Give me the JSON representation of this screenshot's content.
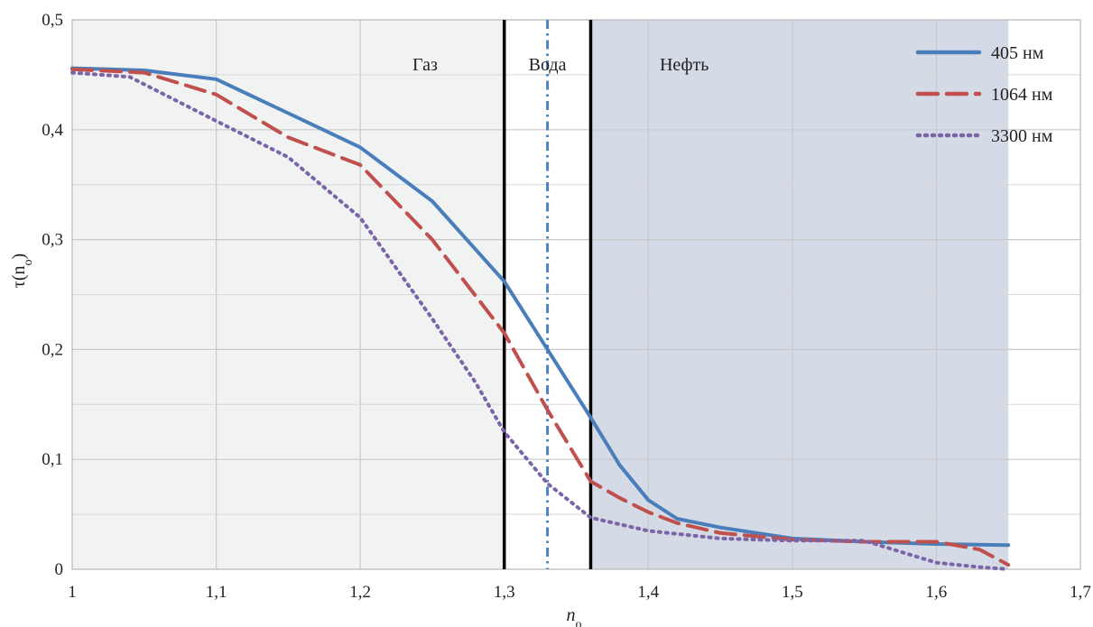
{
  "chart_data": {
    "type": "line",
    "title": "",
    "xlabel": "n",
    "xlabel_sub": "o",
    "ylabel": "τ(n",
    "ylabel_sub": "o",
    "ylabel_close": ")",
    "xlim": [
      1.0,
      1.7
    ],
    "ylim": [
      0.0,
      0.5
    ],
    "x_ticks": [
      {
        "value": 1.0,
        "label": "1"
      },
      {
        "value": 1.1,
        "label": "1,1"
      },
      {
        "value": 1.2,
        "label": "1,2"
      },
      {
        "value": 1.3,
        "label": "1,3"
      },
      {
        "value": 1.4,
        "label": "1,4"
      },
      {
        "value": 1.5,
        "label": "1,5"
      },
      {
        "value": 1.6,
        "label": "1,6"
      },
      {
        "value": 1.7,
        "label": "1,7"
      }
    ],
    "y_ticks": [
      {
        "value": 0.0,
        "label": "0"
      },
      {
        "value": 0.1,
        "label": "0,1"
      },
      {
        "value": 0.2,
        "label": "0,2"
      },
      {
        "value": 0.3,
        "label": "0,3"
      },
      {
        "value": 0.4,
        "label": "0,4"
      },
      {
        "value": 0.5,
        "label": "0,5"
      }
    ],
    "y_minor_grid": [
      0.05,
      0.15,
      0.25,
      0.35,
      0.45
    ],
    "grid": true,
    "legend_position": "top-right",
    "regions": [
      {
        "name": "Газ",
        "x_start": 1.0,
        "x_end": 1.3,
        "color": "#f1f2f2",
        "label_x": 1.245
      },
      {
        "name": "Вода",
        "x_start": 1.3,
        "x_end": 1.36,
        "color": "#ffffff",
        "label_x": 1.33
      },
      {
        "name": "Нефть",
        "x_start": 1.36,
        "x_end": 1.65,
        "color": "#d4dbe6",
        "label_x": 1.425
      }
    ],
    "boundaries": [
      1.3,
      1.36
    ],
    "reference_line": {
      "x": 1.33,
      "color": "#4f81bd"
    },
    "series": [
      {
        "name": "405 нм",
        "color": "#4a7ebb",
        "style": "solid",
        "x": [
          1.0,
          1.05,
          1.1,
          1.15,
          1.2,
          1.25,
          1.3,
          1.33,
          1.36,
          1.38,
          1.4,
          1.42,
          1.45,
          1.5,
          1.55,
          1.6,
          1.65
        ],
        "y": [
          0.456,
          0.454,
          0.446,
          0.415,
          0.384,
          0.335,
          0.262,
          0.2,
          0.138,
          0.095,
          0.063,
          0.046,
          0.038,
          0.028,
          0.025,
          0.023,
          0.022
        ]
      },
      {
        "name": "1064 нм",
        "color": "#c0504d",
        "style": "dashed",
        "x": [
          1.0,
          1.05,
          1.1,
          1.15,
          1.2,
          1.25,
          1.3,
          1.33,
          1.36,
          1.38,
          1.4,
          1.42,
          1.45,
          1.5,
          1.55,
          1.6,
          1.63,
          1.65
        ],
        "y": [
          0.455,
          0.452,
          0.432,
          0.393,
          0.368,
          0.3,
          0.215,
          0.145,
          0.08,
          0.065,
          0.052,
          0.042,
          0.033,
          0.027,
          0.025,
          0.025,
          0.018,
          0.004
        ]
      },
      {
        "name": "3300 нм",
        "color": "#7b64a8",
        "style": "dotted",
        "x": [
          1.0,
          1.04,
          1.1,
          1.15,
          1.2,
          1.25,
          1.28,
          1.3,
          1.33,
          1.36,
          1.4,
          1.45,
          1.5,
          1.55,
          1.6,
          1.63,
          1.65
        ],
        "y": [
          0.452,
          0.448,
          0.408,
          0.375,
          0.32,
          0.228,
          0.17,
          0.125,
          0.078,
          0.047,
          0.035,
          0.028,
          0.026,
          0.026,
          0.006,
          0.002,
          0.0
        ]
      }
    ]
  }
}
